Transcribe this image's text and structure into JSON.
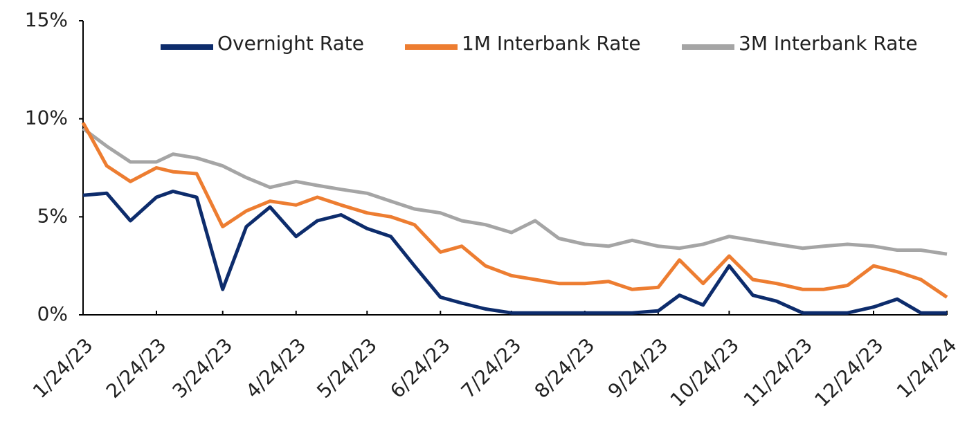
{
  "chart_data": {
    "type": "line",
    "x": [
      "1/24/23",
      "2/3/23",
      "2/13/23",
      "2/24/23",
      "3/3/23",
      "3/13/23",
      "3/24/23",
      "4/3/23",
      "4/13/23",
      "4/24/23",
      "5/3/23",
      "5/13/23",
      "5/24/23",
      "6/3/23",
      "6/13/23",
      "6/24/23",
      "7/3/23",
      "7/13/23",
      "7/24/23",
      "8/3/23",
      "8/13/23",
      "8/24/23",
      "9/3/23",
      "9/13/23",
      "9/24/23",
      "10/3/23",
      "10/13/23",
      "10/24/23",
      "11/3/23",
      "11/13/23",
      "11/24/23",
      "12/3/23",
      "12/13/23",
      "12/24/23",
      "1/3/24",
      "1/13/24",
      "1/24/24"
    ],
    "series": [
      {
        "name": "Overnight Rate",
        "color": "#0d2c6c",
        "values": [
          6.1,
          6.2,
          4.8,
          6.0,
          6.3,
          6.0,
          1.3,
          4.5,
          5.5,
          4.0,
          4.8,
          5.1,
          4.4,
          4.0,
          2.5,
          0.9,
          0.6,
          0.3,
          0.1,
          0.1,
          0.1,
          0.1,
          0.1,
          0.1,
          0.2,
          1.0,
          0.5,
          2.5,
          1.0,
          0.7,
          0.1,
          0.1,
          0.1,
          0.4,
          0.8,
          0.1,
          0.1
        ]
      },
      {
        "name": "1M Interbank Rate",
        "color": "#ed7d31",
        "values": [
          9.8,
          7.6,
          6.8,
          7.5,
          7.3,
          7.2,
          4.5,
          5.3,
          5.8,
          5.6,
          6.0,
          5.6,
          5.2,
          5.0,
          4.6,
          3.2,
          3.5,
          2.5,
          2.0,
          1.8,
          1.6,
          1.6,
          1.7,
          1.3,
          1.4,
          2.8,
          1.6,
          3.0,
          1.8,
          1.6,
          1.3,
          1.3,
          1.5,
          2.5,
          2.2,
          1.8,
          0.9
        ]
      },
      {
        "name": "3M Interbank Rate",
        "color": "#a5a5a5",
        "values": [
          9.5,
          8.6,
          7.8,
          7.8,
          8.2,
          8.0,
          7.6,
          7.0,
          6.5,
          6.8,
          6.6,
          6.4,
          6.2,
          5.8,
          5.4,
          5.2,
          4.8,
          4.6,
          4.2,
          4.8,
          3.9,
          3.6,
          3.5,
          3.8,
          3.5,
          3.4,
          3.6,
          4.0,
          3.8,
          3.6,
          3.4,
          3.5,
          3.6,
          3.5,
          3.3,
          3.3,
          3.1
        ]
      }
    ],
    "xlim": [
      "1/24/23",
      "1/24/24"
    ],
    "xticks": [
      "1/24/23",
      "2/24/23",
      "3/24/23",
      "4/24/23",
      "5/24/23",
      "6/24/23",
      "7/24/23",
      "8/24/23",
      "9/24/23",
      "10/24/23",
      "11/24/23",
      "12/24/23",
      "1/24/24"
    ],
    "ylim": [
      0,
      15
    ],
    "yticks": [
      {
        "value": 0,
        "label": "0%"
      },
      {
        "value": 5,
        "label": "5%"
      },
      {
        "value": 10,
        "label": "10%"
      },
      {
        "value": 15,
        "label": "15%"
      }
    ],
    "grid": false,
    "legend": "top-right"
  }
}
